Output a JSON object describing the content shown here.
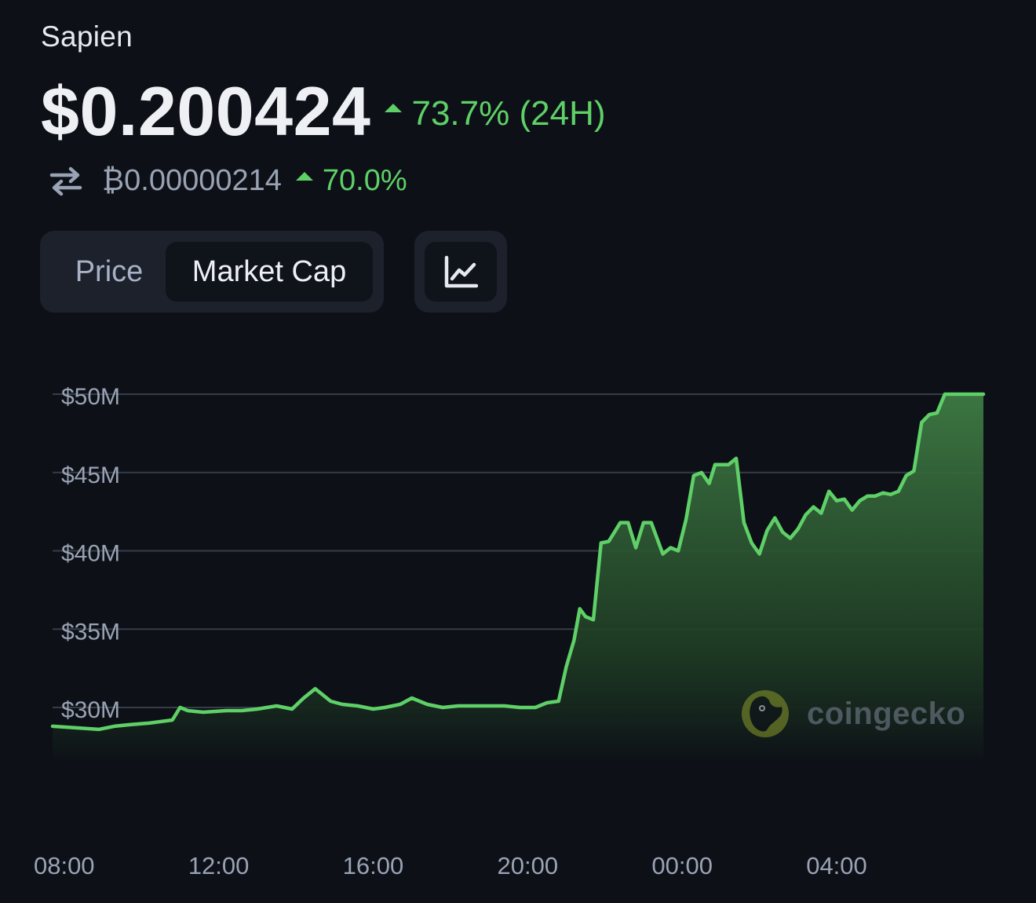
{
  "coin": {
    "name": "Sapien",
    "price": "$0.200424",
    "change_24h": "73.7% (24H)",
    "btc_price": "₿0.00000214",
    "btc_change": "70.0%"
  },
  "icons": {
    "swap": "swap-arrows-icon",
    "change_up": "triangle-up-icon",
    "chart_type": "line-chart-icon",
    "watermark": "coingecko-logo-icon"
  },
  "tabs": {
    "price_label": "Price",
    "market_cap_label": "Market Cap",
    "selected": "Market Cap"
  },
  "watermark": {
    "text": "coingecko"
  },
  "colors": {
    "background": "#0d1117",
    "positive": "#5fd068",
    "line": "#5fd068",
    "grid": "#363c48",
    "axis_text": "#9aa3b5"
  },
  "chart_data": {
    "type": "area",
    "title": "",
    "xlabel": "",
    "ylabel": "",
    "ylim": [
      26000000,
      50500000
    ],
    "y_ticks": [
      {
        "value": 50000000,
        "label": "$50M"
      },
      {
        "value": 45000000,
        "label": "$45M"
      },
      {
        "value": 40000000,
        "label": "$40M"
      },
      {
        "value": 35000000,
        "label": "$35M"
      },
      {
        "value": 30000000,
        "label": "$30M"
      }
    ],
    "x_ticks": [
      "08:00",
      "12:00",
      "16:00",
      "20:00",
      "00:00",
      "04:00"
    ],
    "x_tick_hours": [
      8,
      12,
      16,
      20,
      24,
      28
    ],
    "xlim_hours": [
      7.7,
      31.8
    ],
    "grid": true,
    "series": [
      {
        "x": [
          7.7,
          8.3,
          8.9,
          9.3,
          9.7,
          10.2,
          10.8,
          11.0,
          11.2,
          11.6,
          12.2,
          12.6,
          13.0,
          13.5,
          13.9,
          14.2,
          14.5,
          14.9,
          15.2,
          15.6,
          16.0,
          16.3,
          16.7,
          17.0,
          17.4,
          17.8,
          18.2,
          18.6,
          19.0,
          19.4,
          19.8,
          20.2,
          20.5,
          20.8,
          21.0,
          21.2,
          21.35,
          21.5,
          21.7,
          21.9,
          22.1,
          22.4,
          22.6,
          22.8,
          23.0,
          23.2,
          23.5,
          23.7,
          23.9,
          24.1,
          24.3,
          24.5,
          24.7,
          24.85,
          25.0,
          25.2,
          25.4,
          25.6,
          25.8,
          26.0,
          26.2,
          26.4,
          26.6,
          26.8,
          27.0,
          27.2,
          27.4,
          27.6,
          27.8,
          28.0,
          28.2,
          28.4,
          28.6,
          28.8,
          29.0,
          29.2,
          29.4,
          29.6,
          29.8,
          30.0,
          30.2,
          30.4,
          30.6,
          30.8,
          31.0,
          31.2,
          31.4,
          31.6,
          31.8
        ],
        "values": [
          28.8,
          28.7,
          28.6,
          28.8,
          28.9,
          29.0,
          29.2,
          30.0,
          29.8,
          29.7,
          29.8,
          29.8,
          29.9,
          30.1,
          29.9,
          30.6,
          31.2,
          30.4,
          30.2,
          30.1,
          29.9,
          30.0,
          30.2,
          30.6,
          30.2,
          30.0,
          30.1,
          30.1,
          30.1,
          30.1,
          30.0,
          30.0,
          30.3,
          30.4,
          32.6,
          34.3,
          36.3,
          35.8,
          35.6,
          40.5,
          40.6,
          41.8,
          41.8,
          40.2,
          41.8,
          41.8,
          39.8,
          40.2,
          40.0,
          42.0,
          44.8,
          45.0,
          44.3,
          45.5,
          45.5,
          45.5,
          45.9,
          41.8,
          40.5,
          39.8,
          41.3,
          42.1,
          41.2,
          40.8,
          41.4,
          42.3,
          42.8,
          42.4,
          43.8,
          43.2,
          43.3,
          42.6,
          43.2,
          43.5,
          43.5,
          43.7,
          43.6,
          43.8,
          44.8,
          45.1,
          48.2,
          48.7,
          48.8,
          50.0,
          50.0,
          50.0,
          50.0,
          50.0,
          50.0
        ]
      }
    ]
  }
}
